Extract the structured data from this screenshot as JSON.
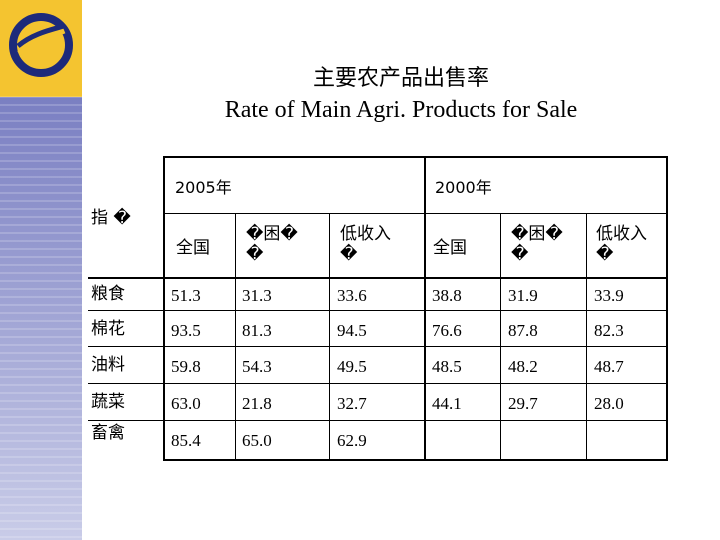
{
  "title": {
    "cn": "主要农产品出售率",
    "en": "Rate of Main Agri. Products for Sale"
  },
  "table": {
    "row_header": "指 �",
    "years": [
      "2005年",
      "2000年"
    ],
    "sub_headers": [
      "全国",
      "�困� �",
      "低收入 �",
      "全国",
      "�困� �",
      "低收入 �"
    ],
    "rows": [
      {
        "name": "粮食",
        "values": [
          "51.3",
          "31.3",
          "33.6",
          "38.8",
          "31.9",
          "33.9"
        ]
      },
      {
        "name": "棉花",
        "values": [
          "93.5",
          "81.3",
          "94.5",
          "76.6",
          "87.8",
          "82.3"
        ]
      },
      {
        "name": "油料",
        "values": [
          "59.8",
          "54.3",
          "49.5",
          "48.5",
          "48.2",
          "48.7"
        ]
      },
      {
        "name": "蔬菜",
        "values": [
          "63.0",
          "21.8",
          "32.7",
          "44.1",
          "29.7",
          "28.0"
        ]
      },
      {
        "name": "畜禽",
        "values": [
          "85.4",
          "65.0",
          "62.9",
          "",
          "",
          ""
        ]
      }
    ]
  }
}
